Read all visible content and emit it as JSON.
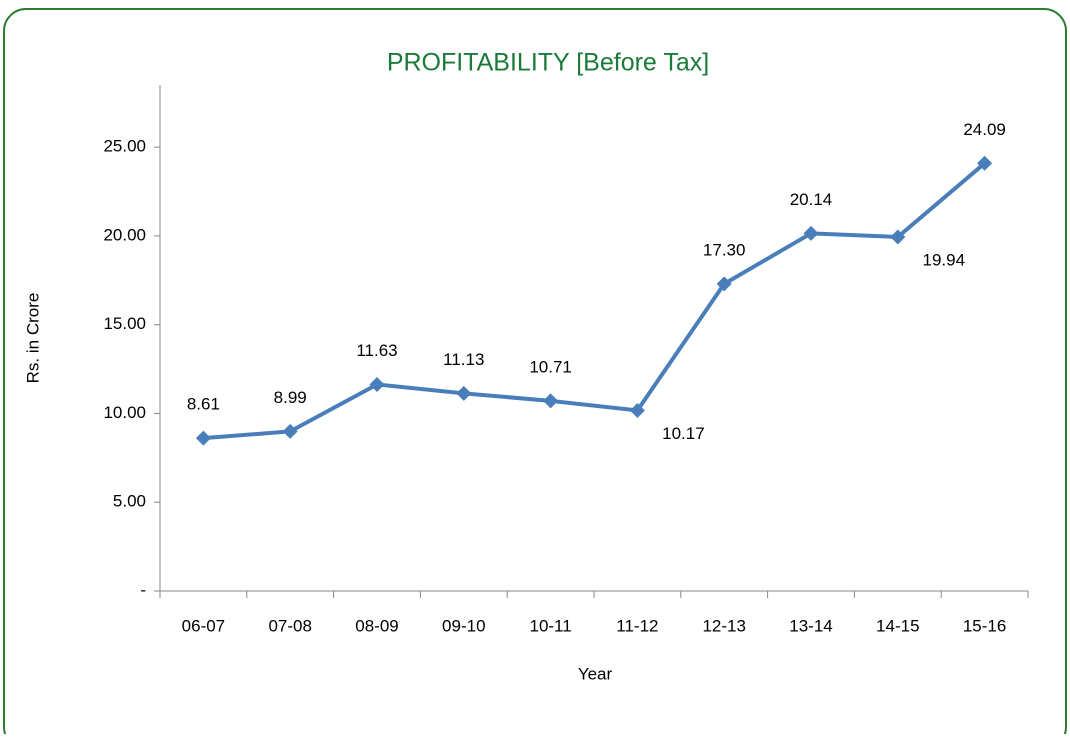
{
  "chart_data": {
    "type": "line",
    "title": "PROFITABILITY [Before  Tax]",
    "x_label": "Year",
    "y_label": "Rs. in Crore",
    "categories": [
      "06-07",
      "07-08",
      "08-09",
      "09-10",
      "10-11",
      "11-12",
      "12-13",
      "13-14",
      "14-15",
      "15-16"
    ],
    "series": [
      {
        "name": "Profitability",
        "color": "#4a7ebb",
        "values": [
          8.61,
          8.99,
          11.63,
          11.13,
          10.71,
          10.17,
          17.3,
          20.14,
          19.94,
          24.09
        ],
        "value_labels": [
          "8.61",
          "8.99",
          "11.63",
          "11.13",
          "10.71",
          "10.17",
          "17.30",
          "20.14",
          "19.94",
          "24.09"
        ]
      }
    ],
    "ylim": [
      0,
      28.5
    ],
    "yticks": [
      {
        "value": 0,
        "label": "-"
      },
      {
        "value": 5,
        "label": "5.00"
      },
      {
        "value": 10,
        "label": "10.00"
      },
      {
        "value": 15,
        "label": "15.00"
      },
      {
        "value": 20,
        "label": "20.00"
      },
      {
        "value": 25,
        "label": "25.00"
      }
    ],
    "grid": false,
    "legend": false
  }
}
